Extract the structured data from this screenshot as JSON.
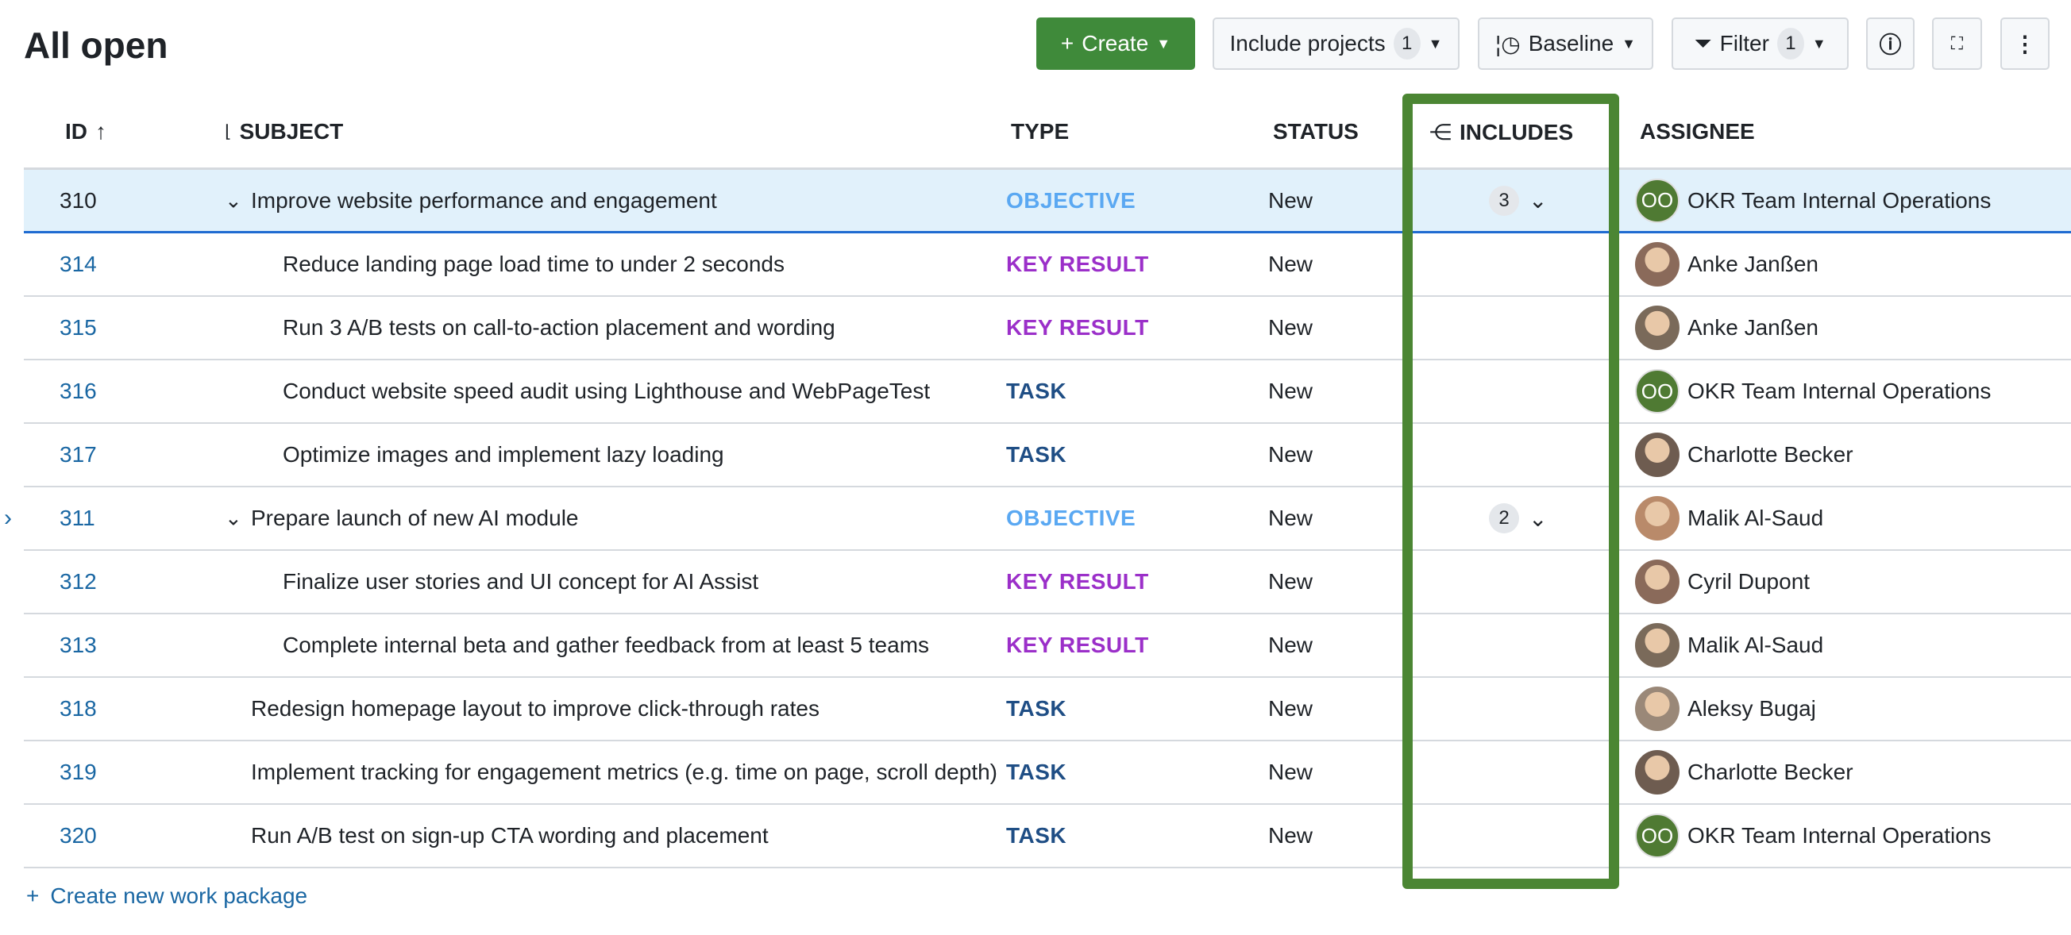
{
  "title": "All open",
  "toolbar": {
    "create": "Create",
    "include_projects": "Include projects",
    "include_projects_count": "1",
    "baseline": "Baseline",
    "filter": "Filter",
    "filter_count": "1"
  },
  "columns": {
    "id": "ID",
    "subject": "SUBJECT",
    "type": "TYPE",
    "status": "STATUS",
    "includes": "INCLUDES",
    "assignee": "ASSIGNEE"
  },
  "rows": [
    {
      "id": "310",
      "subject": "Improve website performance and engagement",
      "type": "OBJECTIVE",
      "status": "New",
      "includes": "3",
      "assignee": "OKR Team Internal Operations",
      "initials": "OO"
    },
    {
      "id": "314",
      "subject": "Reduce landing page load time to under 2 seconds",
      "type": "KEY RESULT",
      "status": "New",
      "assignee": "Anke Janßen"
    },
    {
      "id": "315",
      "subject": "Run 3 A/B tests on call-to-action placement and wording",
      "type": "KEY RESULT",
      "status": "New",
      "assignee": "Anke Janßen"
    },
    {
      "id": "316",
      "subject": "Conduct website speed audit using Lighthouse and WebPageTest",
      "type": "TASK",
      "status": "New",
      "assignee": "OKR Team Internal Operations",
      "initials": "OO"
    },
    {
      "id": "317",
      "subject": "Optimize images and implement lazy loading",
      "type": "TASK",
      "status": "New",
      "assignee": "Charlotte Becker"
    },
    {
      "id": "311",
      "subject": "Prepare launch of new AI module",
      "type": "OBJECTIVE",
      "status": "New",
      "includes": "2",
      "assignee": "Malik Al-Saud"
    },
    {
      "id": "312",
      "subject": "Finalize user stories and UI concept for AI Assist",
      "type": "KEY RESULT",
      "status": "New",
      "assignee": "Cyril Dupont"
    },
    {
      "id": "313",
      "subject": "Complete internal beta and gather feedback from at least 5 teams",
      "type": "KEY RESULT",
      "status": "New",
      "assignee": "Malik Al-Saud"
    },
    {
      "id": "318",
      "subject": "Redesign homepage layout to improve click-through rates",
      "type": "TASK",
      "status": "New",
      "assignee": "Aleksy Bugaj"
    },
    {
      "id": "319",
      "subject": "Implement tracking for engagement metrics (e.g. time on page, scroll depth)",
      "type": "TASK",
      "status": "New",
      "assignee": "Charlotte Becker"
    },
    {
      "id": "320",
      "subject": "Run A/B test on sign-up CTA wording and placement",
      "type": "TASK",
      "status": "New",
      "assignee": "OKR Team Internal Operations",
      "initials": "OO"
    }
  ],
  "create_new": "Create new work package",
  "colors": {
    "objective": "#5aa8f2",
    "key_result": "#9b2fc9",
    "task": "#1f4e85",
    "accent": "#4b8633"
  }
}
